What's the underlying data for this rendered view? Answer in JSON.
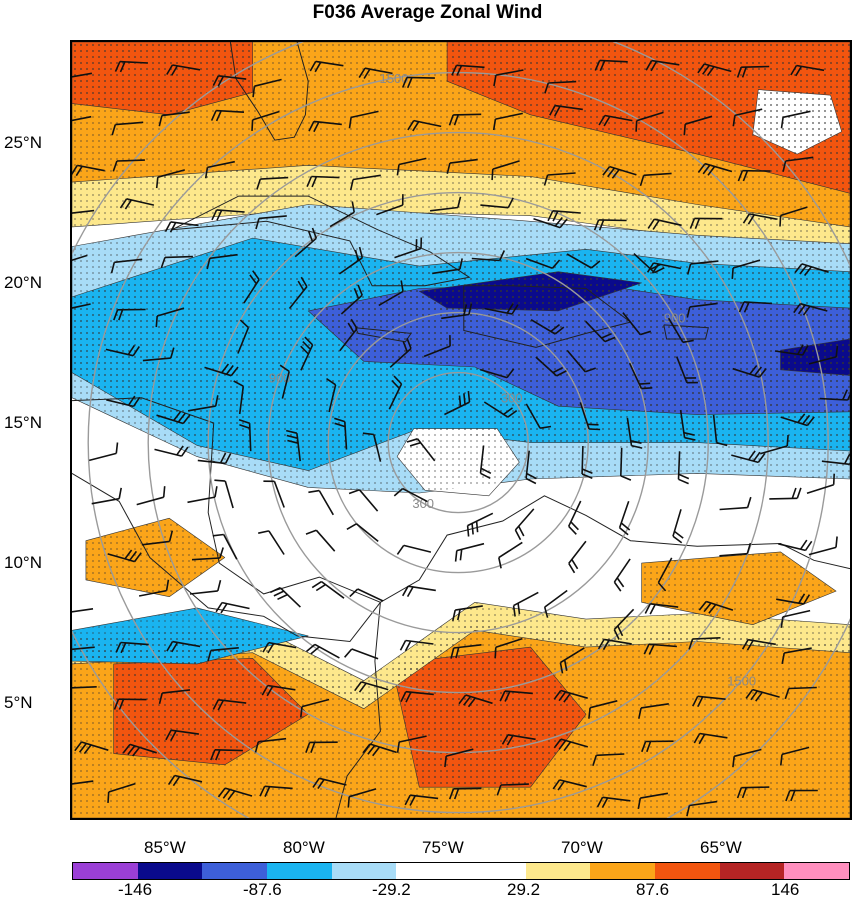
{
  "title": "F036 Average Zonal Wind",
  "lat_labels": [
    {
      "value": 25,
      "text": "25°N"
    },
    {
      "value": 20,
      "text": "20°N"
    },
    {
      "value": 15,
      "text": "15°N"
    },
    {
      "value": 10,
      "text": "10°N"
    },
    {
      "value": 5,
      "text": "5°N"
    }
  ],
  "lon_labels": [
    {
      "value": -85,
      "text": "85°W"
    },
    {
      "value": -80,
      "text": "80°W"
    },
    {
      "value": -75,
      "text": "75°W"
    },
    {
      "value": -70,
      "text": "70°W"
    },
    {
      "value": -65,
      "text": "65°W"
    }
  ],
  "map_extent": {
    "lon": [
      -88.5,
      -60.5
    ],
    "lat": [
      0.9,
      28.6
    ]
  },
  "range_rings": {
    "center": {
      "lon": -74.6,
      "lat": 14.3
    },
    "labels": [
      "300",
      "900",
      "1500"
    ]
  },
  "colorbar": {
    "colors": [
      "#9b3fd6",
      "#0a0a8c",
      "#3d5fd9",
      "#1ab4f0",
      "#a8dcf7",
      "#ffffff",
      "#ffffff",
      "#fde88c",
      "#fba519",
      "#f2550f",
      "#b52424",
      "#ff8fbe"
    ],
    "tick_labels": [
      {
        "pos": 1,
        "text": "-146"
      },
      {
        "pos": 3,
        "text": "-87.6"
      },
      {
        "pos": 5,
        "text": "-29.2"
      },
      {
        "pos": 7,
        "text": "29.2"
      },
      {
        "pos": 9,
        "text": "87.6"
      },
      {
        "pos": 11,
        "text": "146"
      }
    ]
  },
  "regions": [
    {
      "name": "northern-easterly-band",
      "fill": "#fba519",
      "points": [
        [
          -88.5,
          28.6
        ],
        [
          -60.5,
          28.6
        ],
        [
          -60.5,
          21.8
        ],
        [
          -66,
          22.6
        ],
        [
          -72,
          23.6
        ],
        [
          -80,
          24.0
        ],
        [
          -88.5,
          23.4
        ]
      ]
    },
    {
      "name": "northern-core",
      "fill": "#f2550f",
      "points": [
        [
          -75,
          28.6
        ],
        [
          -60.5,
          28.6
        ],
        [
          -60.5,
          23.2
        ],
        [
          -66,
          24.6
        ],
        [
          -72,
          26.0
        ],
        [
          -75,
          27.2
        ]
      ]
    },
    {
      "name": "northwest-core",
      "fill": "#f2550f",
      "points": [
        [
          -88.5,
          28.6
        ],
        [
          -82,
          28.6
        ],
        [
          -82,
          26.8
        ],
        [
          -85,
          26.0
        ],
        [
          -88.5,
          26.4
        ]
      ]
    },
    {
      "name": "northern-pale-edge",
      "fill": "#fde88c",
      "points": [
        [
          -88.5,
          23.6
        ],
        [
          -80,
          24.2
        ],
        [
          -72,
          23.8
        ],
        [
          -66,
          22.8
        ],
        [
          -60.5,
          22.0
        ],
        [
          -60.5,
          21.0
        ],
        [
          -66,
          21.6
        ],
        [
          -72,
          22.4
        ],
        [
          -80,
          22.6
        ],
        [
          -88.5,
          22.0
        ]
      ]
    },
    {
      "name": "northeast-calm",
      "fill": "#ffffff",
      "points": [
        [
          -63.8,
          26.9
        ],
        [
          -61.2,
          26.7
        ],
        [
          -60.8,
          25.4
        ],
        [
          -62.4,
          24.6
        ],
        [
          -64.0,
          25.3
        ]
      ]
    },
    {
      "name": "westerly-jet-outer",
      "fill": "#a8dcf7",
      "points": [
        [
          -88.5,
          21.3
        ],
        [
          -80,
          22.8
        ],
        [
          -72,
          22.2
        ],
        [
          -66,
          21.7
        ],
        [
          -60.5,
          21.4
        ],
        [
          -60.5,
          13.0
        ],
        [
          -66,
          13.2
        ],
        [
          -72,
          13.0
        ],
        [
          -76,
          12.5
        ],
        [
          -80,
          12.7
        ],
        [
          -84,
          13.8
        ],
        [
          -88.5,
          15.9
        ]
      ]
    },
    {
      "name": "westerly-jet",
      "fill": "#1ab4f0",
      "points": [
        [
          -88.5,
          19.5
        ],
        [
          -82,
          21.6
        ],
        [
          -76,
          20.6
        ],
        [
          -70,
          21.2
        ],
        [
          -66,
          20.7
        ],
        [
          -60.5,
          20.4
        ],
        [
          -60.5,
          14.0
        ],
        [
          -66,
          14.3
        ],
        [
          -72,
          14.3
        ],
        [
          -76,
          14.8
        ],
        [
          -80,
          13.3
        ],
        [
          -84,
          14.2
        ],
        [
          -88.5,
          16.8
        ]
      ]
    },
    {
      "name": "westerly-jet-strong",
      "fill": "#3d5fd9",
      "points": [
        [
          -80,
          19.0
        ],
        [
          -76,
          19.8
        ],
        [
          -70,
          20.0
        ],
        [
          -66,
          19.4
        ],
        [
          -60.5,
          19.1
        ],
        [
          -60.5,
          15.4
        ],
        [
          -66,
          15.3
        ],
        [
          -71,
          15.6
        ],
        [
          -74,
          17.0
        ],
        [
          -78,
          17.2
        ]
      ]
    },
    {
      "name": "westerly-jet-core-a",
      "fill": "#0a0a8c",
      "points": [
        [
          -76,
          19.7
        ],
        [
          -71,
          20.4
        ],
        [
          -68,
          20.0
        ],
        [
          -71,
          19.0
        ],
        [
          -75,
          19.1
        ]
      ]
    },
    {
      "name": "westerly-jet-core-b",
      "fill": "#0a0a8c",
      "points": [
        [
          -63,
          17.6
        ],
        [
          -60.5,
          18.0
        ],
        [
          -60.5,
          16.7
        ],
        [
          -63,
          16.9
        ]
      ]
    },
    {
      "name": "jet-inner-calm",
      "fill": "#ffffff",
      "points": [
        [
          -76.2,
          14.8
        ],
        [
          -73.2,
          14.8
        ],
        [
          -72.4,
          13.6
        ],
        [
          -73.5,
          12.4
        ],
        [
          -75.8,
          12.6
        ],
        [
          -76.8,
          13.8
        ]
      ]
    },
    {
      "name": "southern-easterly-band",
      "fill": "#fba519",
      "points": [
        [
          -88.5,
          6.8
        ],
        [
          -82,
          7.2
        ],
        [
          -78,
          5.2
        ],
        [
          -74,
          8.0
        ],
        [
          -70,
          7.4
        ],
        [
          -66,
          7.6
        ],
        [
          -60.5,
          7.1
        ],
        [
          -60.5,
          0.9
        ],
        [
          -88.5,
          0.9
        ]
      ]
    },
    {
      "name": "southern-core-west",
      "fill": "#f2550f",
      "points": [
        [
          -87,
          6.4
        ],
        [
          -82,
          6.6
        ],
        [
          -80,
          4.6
        ],
        [
          -83,
          2.8
        ],
        [
          -87,
          3.2
        ]
      ]
    },
    {
      "name": "southern-core-center",
      "fill": "#f2550f",
      "points": [
        [
          -77,
          6.4
        ],
        [
          -72,
          7.0
        ],
        [
          -70,
          4.6
        ],
        [
          -72,
          2.0
        ],
        [
          -76,
          2.0
        ]
      ]
    },
    {
      "name": "southern-pale-edge",
      "fill": "#fde88c",
      "points": [
        [
          -88.5,
          7.4
        ],
        [
          -82,
          7.8
        ],
        [
          -78,
          5.8
        ],
        [
          -74,
          8.6
        ],
        [
          -70,
          8.0
        ],
        [
          -66,
          8.2
        ],
        [
          -60.5,
          7.8
        ],
        [
          -60.5,
          6.8
        ],
        [
          -66,
          7.2
        ],
        [
          -70,
          7.0
        ],
        [
          -74,
          7.6
        ],
        [
          -78,
          4.8
        ],
        [
          -82,
          6.8
        ],
        [
          -88.5,
          6.4
        ]
      ]
    },
    {
      "name": "western-westerly-patch",
      "fill": "#1ab4f0",
      "points": [
        [
          -88.5,
          7.6
        ],
        [
          -84,
          8.4
        ],
        [
          -80,
          7.4
        ],
        [
          -84,
          6.4
        ],
        [
          -88.5,
          6.5
        ]
      ]
    },
    {
      "name": "central-easterly-patch",
      "fill": "#fba519",
      "points": [
        [
          -88,
          10.8
        ],
        [
          -85,
          11.6
        ],
        [
          -83,
          10.2
        ],
        [
          -85,
          8.8
        ],
        [
          -88,
          9.4
        ]
      ]
    },
    {
      "name": "eastern-easterly-patch",
      "fill": "#fba519",
      "points": [
        [
          -68,
          10.0
        ],
        [
          -63,
          10.4
        ],
        [
          -61,
          9.0
        ],
        [
          -64,
          7.8
        ],
        [
          -68,
          8.6
        ]
      ]
    }
  ]
}
